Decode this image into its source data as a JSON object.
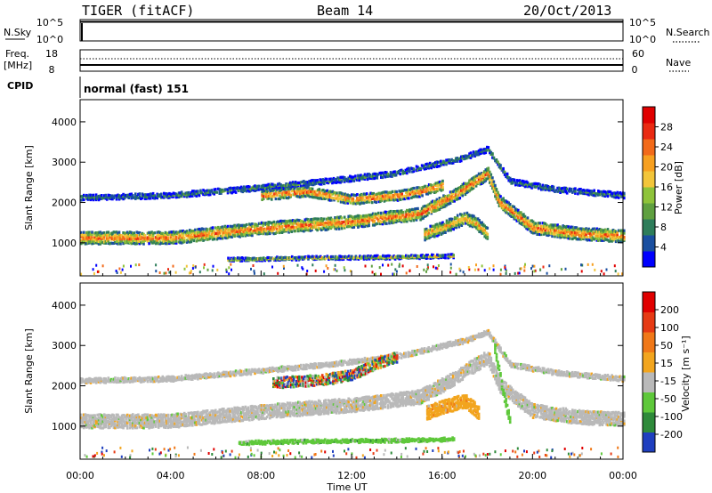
{
  "header": {
    "radar": "TIGER (fitACF)",
    "beam": "Beam 14",
    "date": "20/Oct/2013"
  },
  "strip": {
    "nsky_label": "N.Sky",
    "nsky_ticks": [
      "10^5",
      "10^0"
    ],
    "nsearch_label": "N.Search",
    "nsearch_ticks": [
      "10^5",
      "10^0"
    ],
    "freq_label": "Freq.",
    "freq_unit": "[MHz]",
    "freq_ticks": [
      "18",
      "8"
    ],
    "nave_label": "Nave",
    "nave_ticks": [
      "60",
      "0"
    ],
    "cpid_label": "CPID",
    "cpid_value": "normal (fast) 151"
  },
  "colors": {
    "power": [
      "#0000ff",
      "#1a4fa0",
      "#2e7d5a",
      "#5fa040",
      "#8ec33a",
      "#f2c53a",
      "#f7a020",
      "#f26a1a",
      "#ea2a12",
      "#e00000"
    ],
    "velocity": [
      "#1f3fbf",
      "#2e8a3a",
      "#5ec83a",
      "#b9b9b9",
      "#f2a51e",
      "#f07818",
      "#e63a14",
      "#e00000"
    ]
  },
  "chart_data": [
    {
      "type": "heatmap",
      "title": "Power",
      "ylabel": "Slant Range [km]",
      "xlabel": "",
      "colorbar_label": "Power [dB]",
      "colorbar_ticks": [
        "28",
        "24",
        "20",
        "16",
        "12",
        "8",
        "4"
      ],
      "ylim": [
        180,
        4550
      ],
      "yticks": [
        1000,
        2000,
        3000,
        4000
      ],
      "xticks": [
        "00:00",
        "04:00",
        "08:00",
        "12:00",
        "16:00",
        "20:00",
        "00:00"
      ],
      "bands": [
        {
          "label": "main",
          "x": [
            0,
            4,
            6.5,
            9,
            12,
            15,
            16.5,
            18,
            18.5,
            20,
            22,
            24
          ],
          "y": [
            1100,
            1100,
            1250,
            1380,
            1500,
            1700,
            2150,
            2700,
            2000,
            1350,
            1200,
            1150
          ],
          "width": 260,
          "level": 0.8
        },
        {
          "label": "upper",
          "x": [
            0,
            4,
            7,
            10,
            14,
            17,
            18,
            19,
            21,
            24
          ],
          "y": [
            2100,
            2150,
            2300,
            2450,
            2700,
            3100,
            3300,
            2500,
            2300,
            2150
          ],
          "width": 90,
          "level": 0.3
        },
        {
          "label": "mid",
          "x": [
            8,
            10,
            12,
            14,
            15,
            16
          ],
          "y": [
            2150,
            2250,
            2050,
            2150,
            2250,
            2400
          ],
          "width": 200,
          "level": 0.85
        },
        {
          "label": "lower",
          "x": [
            15.2,
            16,
            17,
            17.5,
            18
          ],
          "y": [
            1200,
            1350,
            1600,
            1450,
            1200
          ],
          "width": 260,
          "level": 0.7
        },
        {
          "label": "floor",
          "x": [
            6.5,
            10,
            14,
            16.5
          ],
          "y": [
            560,
            600,
            620,
            650
          ],
          "width": 50,
          "level": 0.6
        }
      ]
    },
    {
      "type": "heatmap",
      "title": "Velocity",
      "ylabel": "Slant Range [km]",
      "xlabel": "Time UT",
      "colorbar_label": "Velocity [m s⁻¹]",
      "colorbar_ticks": [
        "200",
        "100",
        "50",
        "15",
        "-15",
        "-50",
        "-100",
        "-200"
      ],
      "ylim": [
        180,
        4550
      ],
      "yticks": [
        1000,
        2000,
        3000,
        4000
      ],
      "xticks": [
        "00:00",
        "04:00",
        "08:00",
        "12:00",
        "16:00",
        "20:00",
        "00:00"
      ],
      "bands": [
        {
          "label": "main",
          "x": [
            0,
            4,
            6.5,
            9,
            12,
            15,
            16.5,
            18,
            18.5,
            20,
            22,
            24
          ],
          "y": [
            1100,
            1100,
            1250,
            1380,
            1500,
            1700,
            2150,
            2700,
            2000,
            1350,
            1200,
            1150
          ],
          "width": 300,
          "level": 3
        },
        {
          "label": "upper",
          "x": [
            0,
            4,
            7,
            10,
            14,
            17,
            18,
            19,
            21,
            24
          ],
          "y": [
            2100,
            2150,
            2300,
            2450,
            2700,
            3100,
            3300,
            2500,
            2300,
            2150
          ],
          "width": 80,
          "level": 3
        },
        {
          "label": "mixed",
          "x": [
            8.5,
            10,
            11,
            12,
            13,
            14
          ],
          "y": [
            2050,
            2100,
            2150,
            2250,
            2500,
            2700
          ],
          "width": 220,
          "level": 1
        },
        {
          "label": "orange",
          "x": [
            15.3,
            16,
            17,
            17.6
          ],
          "y": [
            1300,
            1450,
            1600,
            1300
          ],
          "width": 300,
          "level": 4
        },
        {
          "label": "green",
          "x": [
            18.3,
            18.6,
            19
          ],
          "y": [
            2900,
            2000,
            1000
          ],
          "width": 200,
          "level": 2
        },
        {
          "label": "floor",
          "x": [
            7,
            10,
            14,
            16.5
          ],
          "y": [
            560,
            600,
            620,
            650
          ],
          "width": 50,
          "level": 2
        }
      ]
    }
  ]
}
